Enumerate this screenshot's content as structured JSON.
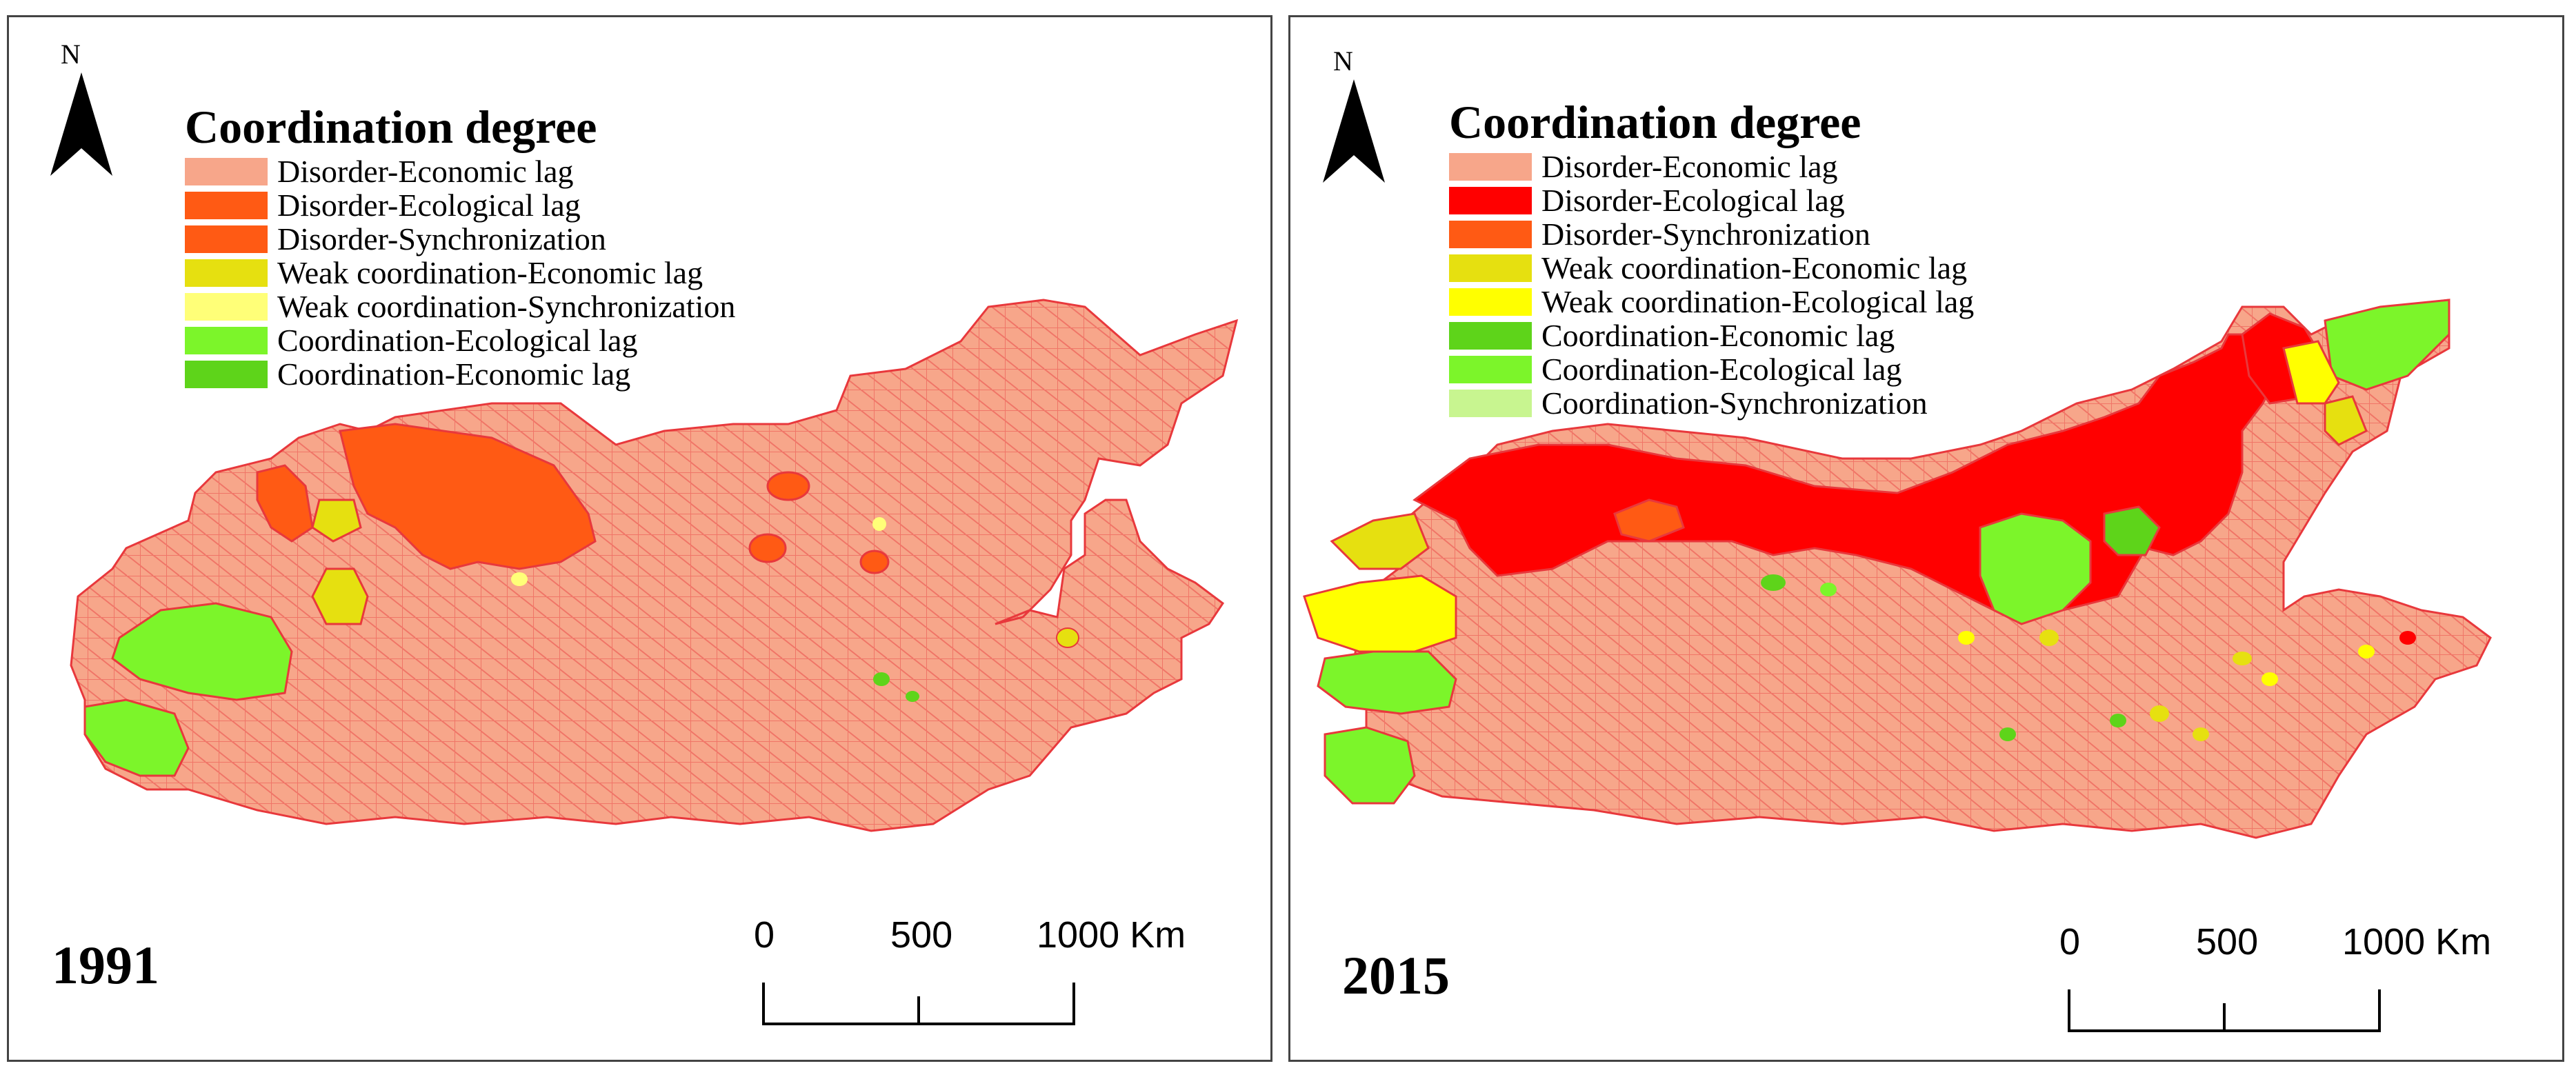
{
  "colors": {
    "disorder_economic": "#f7a68a",
    "disorder_ecological": "#ff0000",
    "disorder_ecological_1991": "#ff5a14",
    "disorder_sync": "#ff5a14",
    "weak_economic": "#e6e010",
    "weak_sync_1991": "#ffff78",
    "weak_ecological": "#ffff00",
    "coord_economic": "#5ed41a",
    "coord_ecological": "#7cf52a",
    "coord_sync": "#c8f590",
    "boundary": "#e8383c"
  },
  "north_label": "N",
  "scale": {
    "ticks": [
      "0",
      "500",
      "1000 Km"
    ]
  },
  "maps": [
    {
      "year": "1991",
      "legend": {
        "title": "Coordination degree",
        "items": [
          {
            "label": "Disorder-Economic lag",
            "color": "#f7a68a"
          },
          {
            "label": "Disorder-Ecological lag",
            "color": "#ff5a14"
          },
          {
            "label": "Disorder-Synchronization",
            "color": "#ff5a14"
          },
          {
            "label": "Weak coordination-Economic lag",
            "color": "#e6e010"
          },
          {
            "label": "Weak coordination-Synchronization",
            "color": "#ffff78"
          },
          {
            "label": "Coordination-Ecological lag",
            "color": "#7cf52a"
          },
          {
            "label": "Coordination-Economic lag",
            "color": "#5ed41a"
          }
        ]
      }
    },
    {
      "year": "2015",
      "legend": {
        "title": "Coordination degree",
        "items": [
          {
            "label": "Disorder-Economic lag",
            "color": "#f7a68a"
          },
          {
            "label": "Disorder-Ecological lag",
            "color": "#ff0000"
          },
          {
            "label": "Disorder-Synchronization",
            "color": "#ff5a14"
          },
          {
            "label": "Weak coordination-Economic lag",
            "color": "#e6e010"
          },
          {
            "label": "Weak coordination-Ecological lag",
            "color": "#ffff00"
          },
          {
            "label": "Coordination-Economic lag",
            "color": "#5ed41a"
          },
          {
            "label": "Coordination-Ecological lag",
            "color": "#7cf52a"
          },
          {
            "label": "Coordination-Synchronization",
            "color": "#c8f590"
          }
        ]
      }
    }
  ]
}
